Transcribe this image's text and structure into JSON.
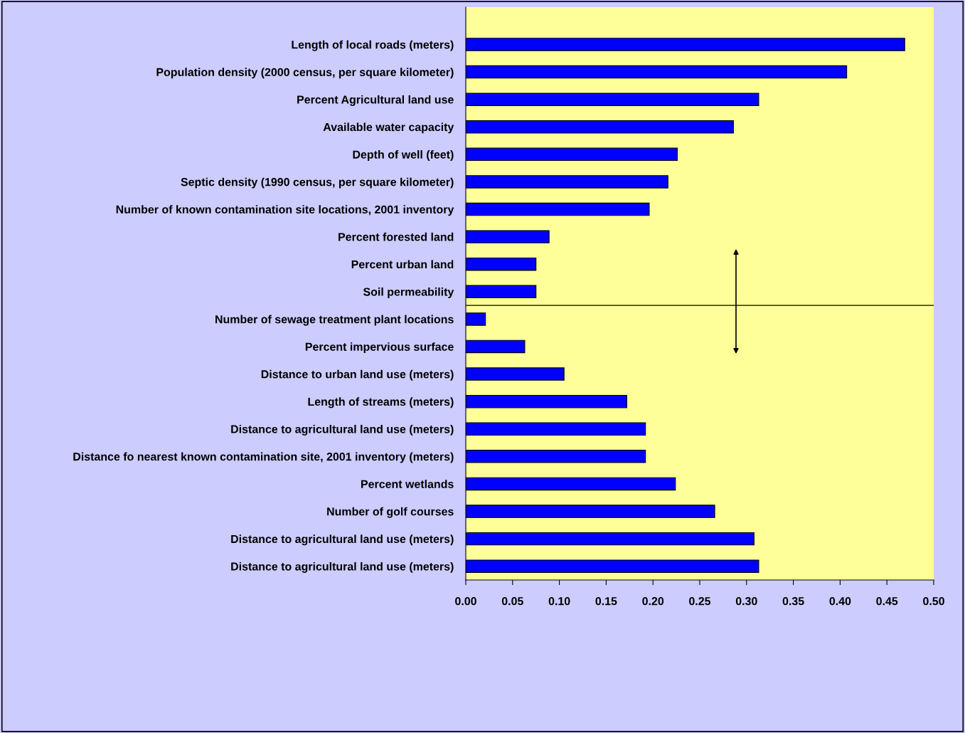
{
  "chart_data": {
    "type": "bar",
    "orientation": "horizontal",
    "categories": [
      "Length of local roads (meters)",
      "Population density (2000 census, per square kilometer)",
      "Percent Agricultural land use",
      "Available water capacity",
      "Depth of well (feet)",
      "Septic density (1990 census, per square kilometer)",
      "Number of known contamination site locations, 2001 inventory",
      "Percent forested land",
      "Percent urban land",
      "Soil permeability",
      "Number of sewage treatment plant locations",
      "Percent impervious surface",
      "Distance to urban land use (meters)",
      "Length of streams (meters)",
      "Distance to agricultural land use (meters)",
      "Distance fo nearest known contamination site, 2001 inventory (meters)",
      "Percent wetlands",
      "Number of golf courses",
      "Distance to agricultural land use (meters)",
      "Distance to agricultural land use (meters)"
    ],
    "values": [
      0.469,
      0.407,
      0.313,
      0.286,
      0.226,
      0.216,
      0.196,
      0.089,
      0.075,
      0.075,
      0.021,
      0.063,
      0.105,
      0.172,
      0.192,
      0.192,
      0.224,
      0.266,
      0.308,
      0.313
    ],
    "color": "#0000ff",
    "xlim": [
      0,
      0.5
    ],
    "xticks": [
      {
        "value": 0,
        "label": "0.00"
      },
      {
        "value": 0.05,
        "label": "0.05"
      },
      {
        "value": 0.1,
        "label": "0.10"
      },
      {
        "value": 0.15,
        "label": "0.15"
      },
      {
        "value": 0.2,
        "label": "0.20"
      },
      {
        "value": 0.25,
        "label": "0.25"
      },
      {
        "value": 0.3,
        "label": "0.30"
      },
      {
        "value": 0.35,
        "label": "0.35"
      },
      {
        "value": 0.4,
        "label": "0.40"
      },
      {
        "value": 0.45,
        "label": "0.45"
      },
      {
        "value": 0.5,
        "label": "0.50"
      }
    ],
    "grid": false,
    "legend": false
  }
}
